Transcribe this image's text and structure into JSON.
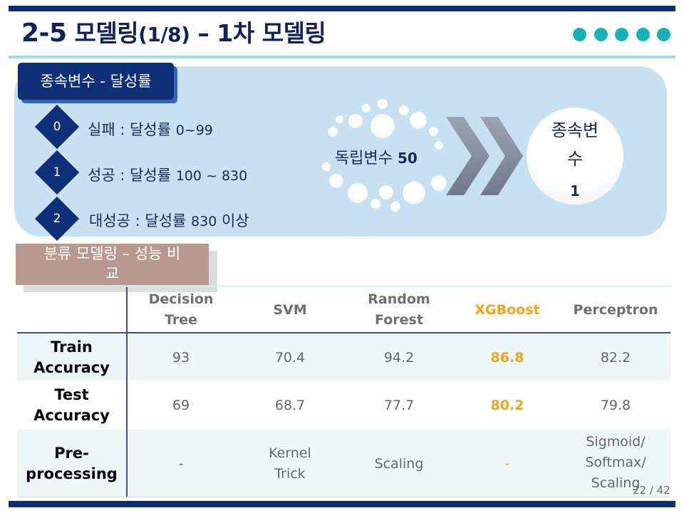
{
  "header": {
    "title_prefix": "2-5",
    "title_ko1": "모델링",
    "title_paren": "(1/8)",
    "title_dash": " – ",
    "title_num": "1",
    "title_ko2": "차 모델링",
    "accent_color": "#17b2b8",
    "bar_color": "#0f2a6e"
  },
  "dependent": {
    "tag": "종속변수 - 달성률",
    "items": [
      {
        "num": "0",
        "label": "실패 : 달성률 ",
        "range": "0~99"
      },
      {
        "num": "1",
        "label": "성공 : 달성률 ",
        "range": "100 ~ 830"
      },
      {
        "num": "2",
        "label": "대성공 : 달성률 ",
        "range": "830",
        "suffix": " 이상"
      }
    ],
    "indep_label": "독립변수 ",
    "indep_count": "50",
    "dep_label_l1": "종속변",
    "dep_label_l2": "수",
    "dep_count": "1"
  },
  "classification": {
    "tag_l1": "분류 모델링 – 성능 비",
    "tag_l2": "교"
  },
  "table": {
    "columns": [
      {
        "l1": "Decision",
        "l2": "Tree"
      },
      {
        "l1": "SVM",
        "l2": ""
      },
      {
        "l1": "Random",
        "l2": "Forest"
      },
      {
        "l1": "XGBoost",
        "l2": ""
      },
      {
        "l1": "Perceptron",
        "l2": ""
      }
    ],
    "rows": [
      {
        "l1": "Train",
        "l2": "Accuracy",
        "cells": [
          "93",
          "70.4",
          "94.2",
          "86.8",
          "82.2"
        ]
      },
      {
        "l1": "Test",
        "l2": "Accuracy",
        "cells": [
          "69",
          "68.7",
          "77.7",
          "80.2",
          "79.8"
        ]
      },
      {
        "l1": "Pre-",
        "l2": "processing",
        "cells": [
          {
            "l1": "-"
          },
          {
            "l1": "Kernel",
            "l2": "Trick"
          },
          {
            "l1": "Scaling"
          },
          {
            "l1": "-"
          },
          {
            "l1": "Sigmoid/",
            "l2": "Softmax/",
            "l3": "Scaling"
          }
        ]
      }
    ],
    "highlight_color": "#f2a21f"
  },
  "footer": {
    "page": "22 / 42"
  }
}
